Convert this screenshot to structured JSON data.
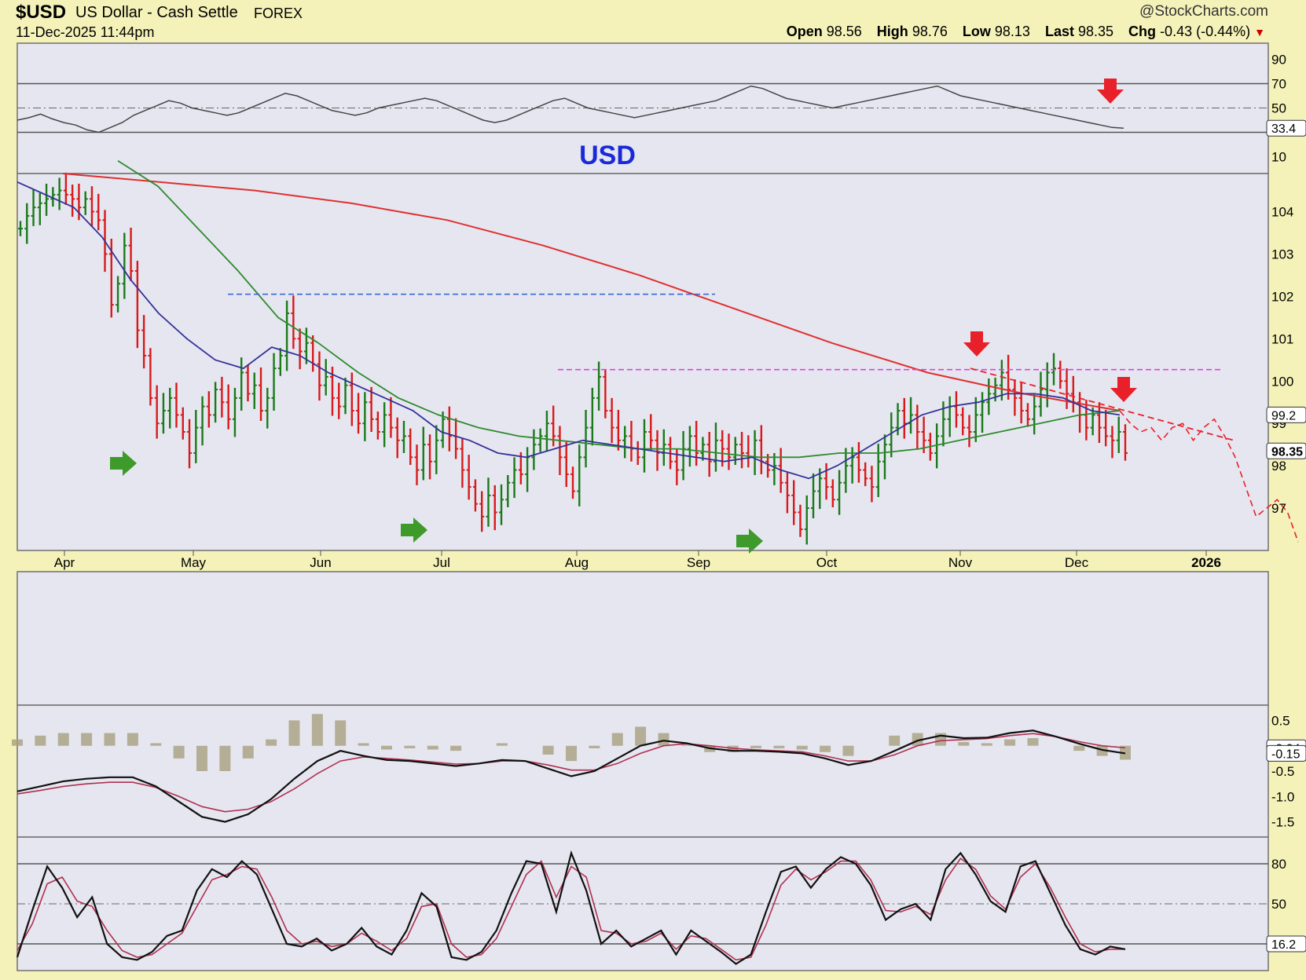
{
  "header": {
    "symbol": "$USD",
    "description": "US Dollar - Cash Settle",
    "exchange": "FOREX",
    "datetime": "11-Dec-2025 11:44pm",
    "brand": "@StockCharts.com",
    "open_label": "Open",
    "open": "98.56",
    "high_label": "High",
    "high": "98.76",
    "low_label": "Low",
    "low": "98.13",
    "last_label": "Last",
    "last": "98.35",
    "chg_label": "Chg",
    "chg": "-0.43 (-0.44%)"
  },
  "colors": {
    "background": "#f4f2b8",
    "panel": "#e6e6f0",
    "up_bar": "#1a7a1a",
    "down_bar": "#d81a1a",
    "ma_200": "#e03030",
    "ma_50": "#2e8b2e",
    "ma_20": "#33339a",
    "annotation_red": "#e8202a",
    "annotation_green": "#3e9a2a",
    "support_blue": "#3a6ad8",
    "resistance_magenta": "#e040e0"
  },
  "chart_data": [
    {
      "type": "line",
      "indicator": "RSI",
      "yticks": [
        90,
        70,
        50,
        10
      ],
      "ylim": [
        0,
        100
      ],
      "last_value": "33.4",
      "values": [
        40,
        42,
        45,
        41,
        38,
        36,
        32,
        30,
        34,
        38,
        44,
        48,
        52,
        56,
        54,
        50,
        48,
        46,
        44,
        46,
        50,
        54,
        58,
        62,
        60,
        56,
        52,
        48,
        46,
        44,
        46,
        50,
        52,
        54,
        56,
        58,
        56,
        52,
        48,
        44,
        40,
        38,
        40,
        44,
        48,
        52,
        56,
        58,
        54,
        50,
        48,
        46,
        44,
        42,
        44,
        46,
        48,
        50,
        52,
        54,
        56,
        60,
        64,
        68,
        66,
        62,
        58,
        56,
        54,
        52,
        50,
        52,
        54,
        56,
        58,
        60,
        62,
        64,
        66,
        68,
        64,
        60,
        58,
        56,
        54,
        52,
        50,
        48,
        46,
        44,
        42,
        40,
        38,
        36,
        34,
        33.4
      ]
    },
    {
      "type": "bar",
      "subtype": "ohlc",
      "title": "USD",
      "x_labels": [
        "Apr",
        "May",
        "Jun",
        "Jul",
        "Aug",
        "Sep",
        "Oct",
        "Nov",
        "Dec",
        "2026"
      ],
      "yticks": [
        104,
        103,
        102,
        101,
        100,
        99,
        98,
        97
      ],
      "ylim": [
        96.0,
        104.9
      ],
      "last_value": "98.35",
      "ma20_last": "99.2",
      "closes": [
        103.6,
        103.9,
        104.1,
        104.2,
        104.3,
        104.4,
        104.5,
        104.4,
        104.3,
        104.1,
        104.3,
        104.0,
        103.8,
        103.0,
        101.8,
        102.3,
        103.2,
        102.6,
        101.2,
        100.6,
        99.6,
        99.0,
        99.3,
        99.6,
        99.2,
        98.8,
        98.3,
        98.9,
        99.4,
        99.2,
        99.8,
        99.5,
        99.1,
        99.6,
        100.2,
        99.7,
        99.9,
        99.3,
        99.6,
        100.3,
        100.6,
        101.6,
        101.0,
        100.7,
        100.9,
        100.4,
        99.9,
        100.1,
        99.6,
        99.4,
        99.9,
        99.3,
        99.0,
        99.5,
        99.1,
        98.8,
        99.2,
        98.9,
        98.6,
        98.7,
        98.2,
        97.9,
        98.5,
        98.1,
        98.6,
        99.1,
        98.7,
        98.4,
        97.9,
        97.5,
        97.1,
        96.8,
        97.3,
        96.9,
        97.2,
        97.6,
        97.9,
        97.8,
        98.2,
        98.5,
        98.7,
        99.0,
        98.7,
        98.2,
        97.8,
        97.4,
        98.2,
        98.9,
        99.6,
        100.1,
        99.3,
        98.9,
        98.6,
        98.7,
        98.4,
        98.2,
        98.8,
        98.6,
        98.3,
        98.5,
        98.1,
        97.9,
        98.4,
        98.7,
        98.3,
        98.5,
        98.1,
        98.6,
        98.4,
        98.2,
        98.5,
        98.3,
        98.2,
        98.6,
        98.1,
        97.9,
        98.0,
        97.6,
        97.3,
        96.9,
        96.5,
        97.0,
        97.4,
        97.7,
        97.5,
        97.2,
        97.6,
        98.0,
        98.2,
        97.9,
        97.7,
        97.5,
        98.1,
        98.5,
        98.9,
        99.3,
        99.0,
        99.2,
        98.8,
        98.6,
        98.3,
        98.7,
        99.1,
        99.4,
        99.2,
        98.9,
        98.8,
        99.2,
        99.5,
        99.7,
        99.9,
        100.2,
        99.8,
        99.6,
        99.3,
        99.1,
        99.4,
        99.8,
        100.2,
        100.3,
        100.0,
        99.7,
        99.5,
        99.2,
        98.9,
        99.2,
        98.9,
        98.7,
        98.6,
        98.8,
        98.3
      ],
      "ma20_points": [
        104.7,
        104.4,
        104.1,
        103.4,
        102.4,
        101.6,
        101.0,
        100.5,
        100.3,
        100.8,
        100.6,
        100.2,
        99.9,
        99.6,
        99.3,
        98.8,
        98.6,
        98.3,
        98.2,
        98.4,
        98.6,
        98.5,
        98.4,
        98.3,
        98.2,
        98.1,
        98.2,
        97.9,
        97.7,
        98.0,
        98.4,
        98.8,
        99.2,
        99.4,
        99.5,
        99.7,
        99.7,
        99.6,
        99.3,
        99.2
      ],
      "ma50_points": [
        105.2,
        104.6,
        103.6,
        102.6,
        101.5,
        100.9,
        100.2,
        99.6,
        99.2,
        98.9,
        98.7,
        98.6,
        98.5,
        98.4,
        98.4,
        98.3,
        98.2,
        98.2,
        98.3,
        98.3,
        98.4,
        98.6,
        98.8,
        99.0,
        99.2,
        99.3
      ],
      "ma200_points": [
        104.9,
        104.7,
        104.5,
        104.2,
        103.8,
        103.2,
        102.5,
        101.7,
        100.9,
        100.2,
        99.7,
        99.3
      ],
      "projection": [
        99.3,
        99.0,
        98.8,
        98.9,
        98.6,
        98.9,
        99.0,
        98.6,
        98.9,
        99.1,
        98.7,
        98.2,
        97.5,
        96.8,
        97.0,
        97.2,
        96.9,
        96.2
      ]
    },
    {
      "type": "line",
      "indicator": "MACD",
      "yticks": [
        "0.5",
        "0",
        "-0.5",
        "-1.0",
        "-1.5"
      ],
      "ylim": [
        -1.8,
        0.8
      ],
      "last_signal": "-0.04",
      "last_macd": "-0.15",
      "macd": [
        -0.9,
        -0.8,
        -0.7,
        -0.65,
        -0.62,
        -0.62,
        -0.8,
        -1.1,
        -1.4,
        -1.5,
        -1.35,
        -1.05,
        -0.65,
        -0.3,
        -0.1,
        -0.2,
        -0.28,
        -0.3,
        -0.35,
        -0.4,
        -0.35,
        -0.28,
        -0.3,
        -0.45,
        -0.6,
        -0.5,
        -0.25,
        0.0,
        0.1,
        0.05,
        -0.05,
        -0.1,
        -0.1,
        -0.12,
        -0.15,
        -0.25,
        -0.38,
        -0.3,
        -0.1,
        0.1,
        0.2,
        0.15,
        0.16,
        0.25,
        0.3,
        0.18,
        0.04,
        -0.08,
        -0.15
      ],
      "signal": [
        -0.95,
        -0.88,
        -0.8,
        -0.75,
        -0.72,
        -0.72,
        -0.82,
        -1.0,
        -1.2,
        -1.3,
        -1.25,
        -1.1,
        -0.85,
        -0.55,
        -0.3,
        -0.22,
        -0.25,
        -0.28,
        -0.32,
        -0.36,
        -0.35,
        -0.3,
        -0.3,
        -0.38,
        -0.48,
        -0.48,
        -0.35,
        -0.15,
        0.0,
        0.04,
        0.0,
        -0.05,
        -0.08,
        -0.1,
        -0.12,
        -0.2,
        -0.3,
        -0.3,
        -0.18,
        0.0,
        0.1,
        0.12,
        0.14,
        0.2,
        0.24,
        0.18,
        0.08,
        0.0,
        -0.04
      ]
    },
    {
      "type": "line",
      "indicator": "Stochastic",
      "yticks": [
        80,
        50,
        20
      ],
      "ylim": [
        0,
        100
      ],
      "last_value": "16.2",
      "k": [
        10,
        45,
        78,
        62,
        40,
        55,
        20,
        10,
        8,
        14,
        26,
        30,
        60,
        76,
        70,
        82,
        72,
        46,
        20,
        18,
        24,
        15,
        20,
        32,
        18,
        12,
        30,
        58,
        48,
        10,
        8,
        14,
        30,
        58,
        82,
        80,
        44,
        88,
        60,
        20,
        30,
        18,
        24,
        30,
        12,
        30,
        22,
        14,
        5,
        12,
        44,
        74,
        78,
        62,
        76,
        85,
        80,
        64,
        38,
        46,
        50,
        38,
        76,
        88,
        72,
        52,
        44,
        78,
        82,
        58,
        34,
        16,
        12,
        18,
        16
      ],
      "d": [
        15,
        35,
        65,
        70,
        52,
        48,
        30,
        15,
        10,
        12,
        20,
        28,
        48,
        68,
        72,
        78,
        76,
        55,
        30,
        20,
        22,
        18,
        20,
        28,
        22,
        15,
        24,
        48,
        50,
        20,
        10,
        12,
        24,
        48,
        72,
        82,
        55,
        78,
        70,
        30,
        28,
        20,
        22,
        28,
        16,
        26,
        24,
        16,
        8,
        10,
        34,
        64,
        76,
        68,
        74,
        82,
        82,
        68,
        45,
        44,
        48,
        42,
        68,
        84,
        76,
        56,
        46,
        70,
        80,
        62,
        40,
        20,
        14,
        16,
        16
      ]
    }
  ]
}
